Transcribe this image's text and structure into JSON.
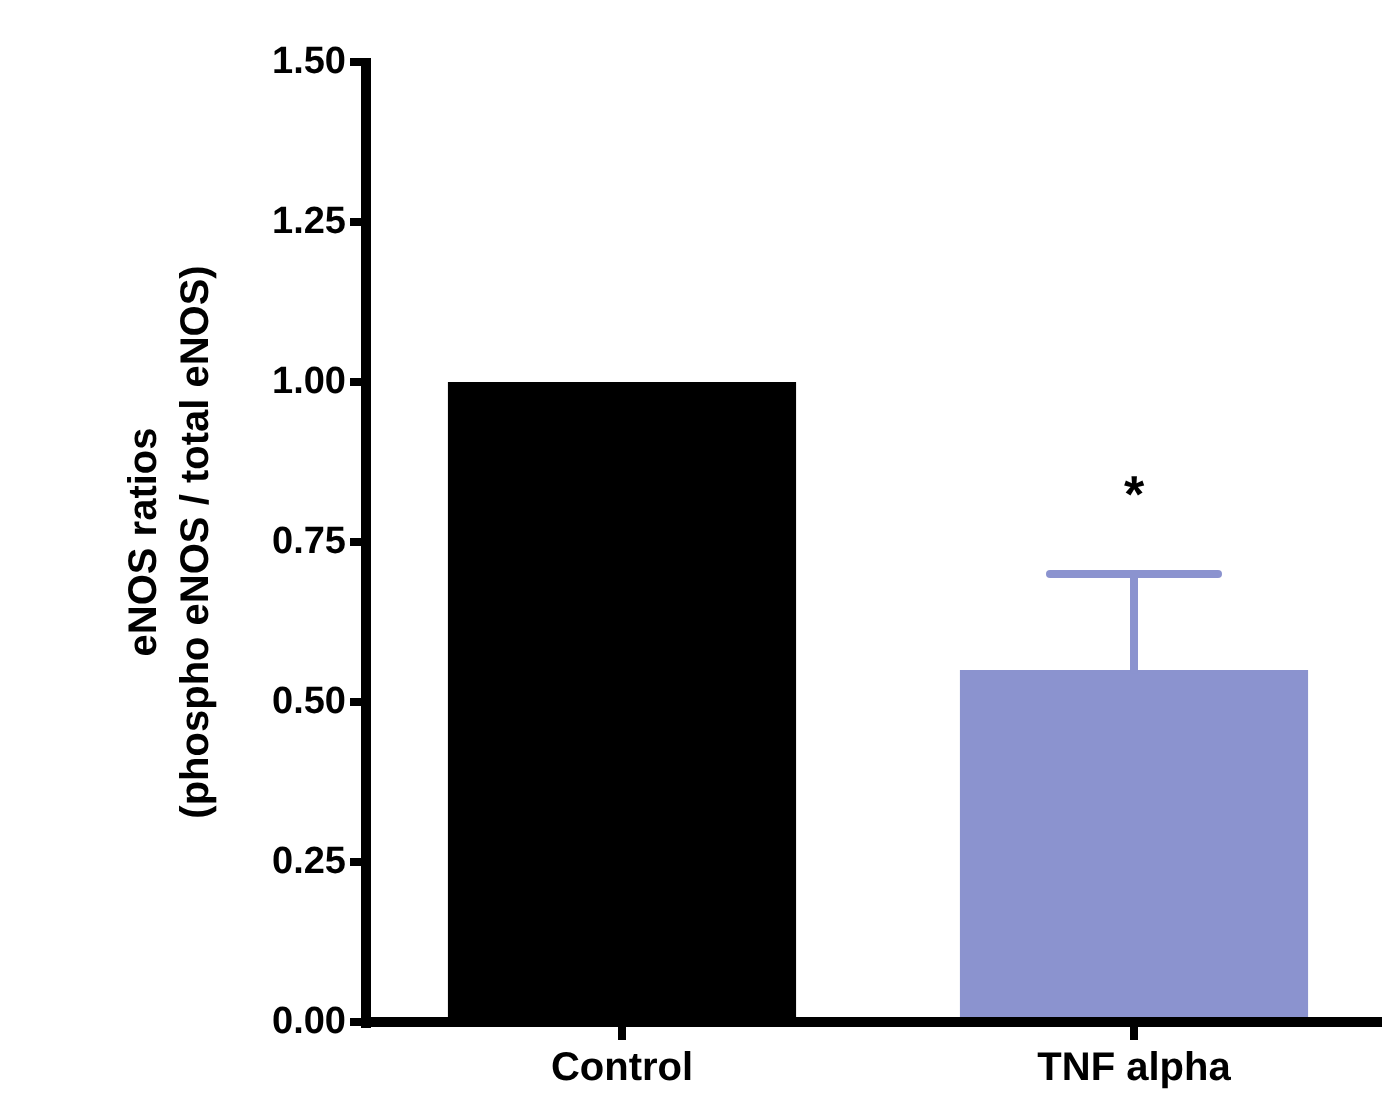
{
  "chart_data": {
    "type": "bar",
    "ylabel": "eNOS ratios\n(phospho eNOS / total eNOS)",
    "categories": [
      "Control",
      "TNF alpha"
    ],
    "values": [
      1.0,
      0.55
    ],
    "colors": [
      "#000000",
      "#8b93cf"
    ],
    "errors": [
      null,
      [
        0.55,
        0.7
      ]
    ],
    "ylim": [
      0,
      1.5
    ],
    "yticks": [
      {
        "value": 0,
        "label": "0.00"
      },
      {
        "value": 0.25,
        "label": "0.25"
      },
      {
        "value": 0.5,
        "label": "0.50"
      },
      {
        "value": 0.75,
        "label": "0.75"
      },
      {
        "value": 1,
        "label": "1.00"
      },
      {
        "value": 1.25,
        "label": "1.25"
      },
      {
        "value": 1.5,
        "label": "1.50"
      }
    ],
    "annotations": [
      "*"
    ]
  }
}
